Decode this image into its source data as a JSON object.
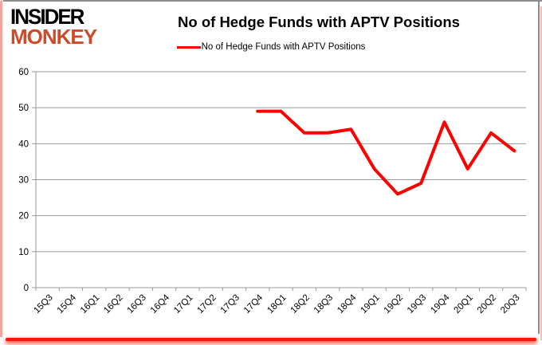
{
  "logo": {
    "line1": "INSIDER",
    "line2": "MONKEY",
    "line2_color": "#cd4a2b"
  },
  "header": {
    "title": "No of Hedge Funds with APTV Positions"
  },
  "legend": {
    "label": "No of Hedge Funds with APTV Positions",
    "line_color": "#ff0000"
  },
  "chart_data": {
    "type": "line",
    "title": "No of Hedge Funds with APTV Positions",
    "categories": [
      "15Q3",
      "15Q4",
      "16Q1",
      "16Q2",
      "16Q3",
      "16Q4",
      "17Q1",
      "17Q2",
      "17Q3",
      "17Q4",
      "18Q1",
      "18Q2",
      "18Q3",
      "18Q4",
      "19Q1",
      "19Q2",
      "19Q3",
      "19Q4",
      "20Q1",
      "20Q2",
      "20Q3"
    ],
    "series": [
      {
        "name": "No of Hedge Funds with APTV Positions",
        "color": "#ff0000",
        "values": [
          null,
          null,
          null,
          null,
          null,
          null,
          null,
          null,
          null,
          49,
          49,
          43,
          43,
          44,
          33,
          26,
          29,
          46,
          33,
          43,
          38
        ]
      }
    ],
    "xlabel": "",
    "ylabel": "",
    "ylim": [
      0,
      60
    ],
    "ytick_interval": 10,
    "grid": true,
    "grid_color": "#9a9a9a",
    "legend_position": "top-center",
    "axis_text_color": "#000000"
  }
}
